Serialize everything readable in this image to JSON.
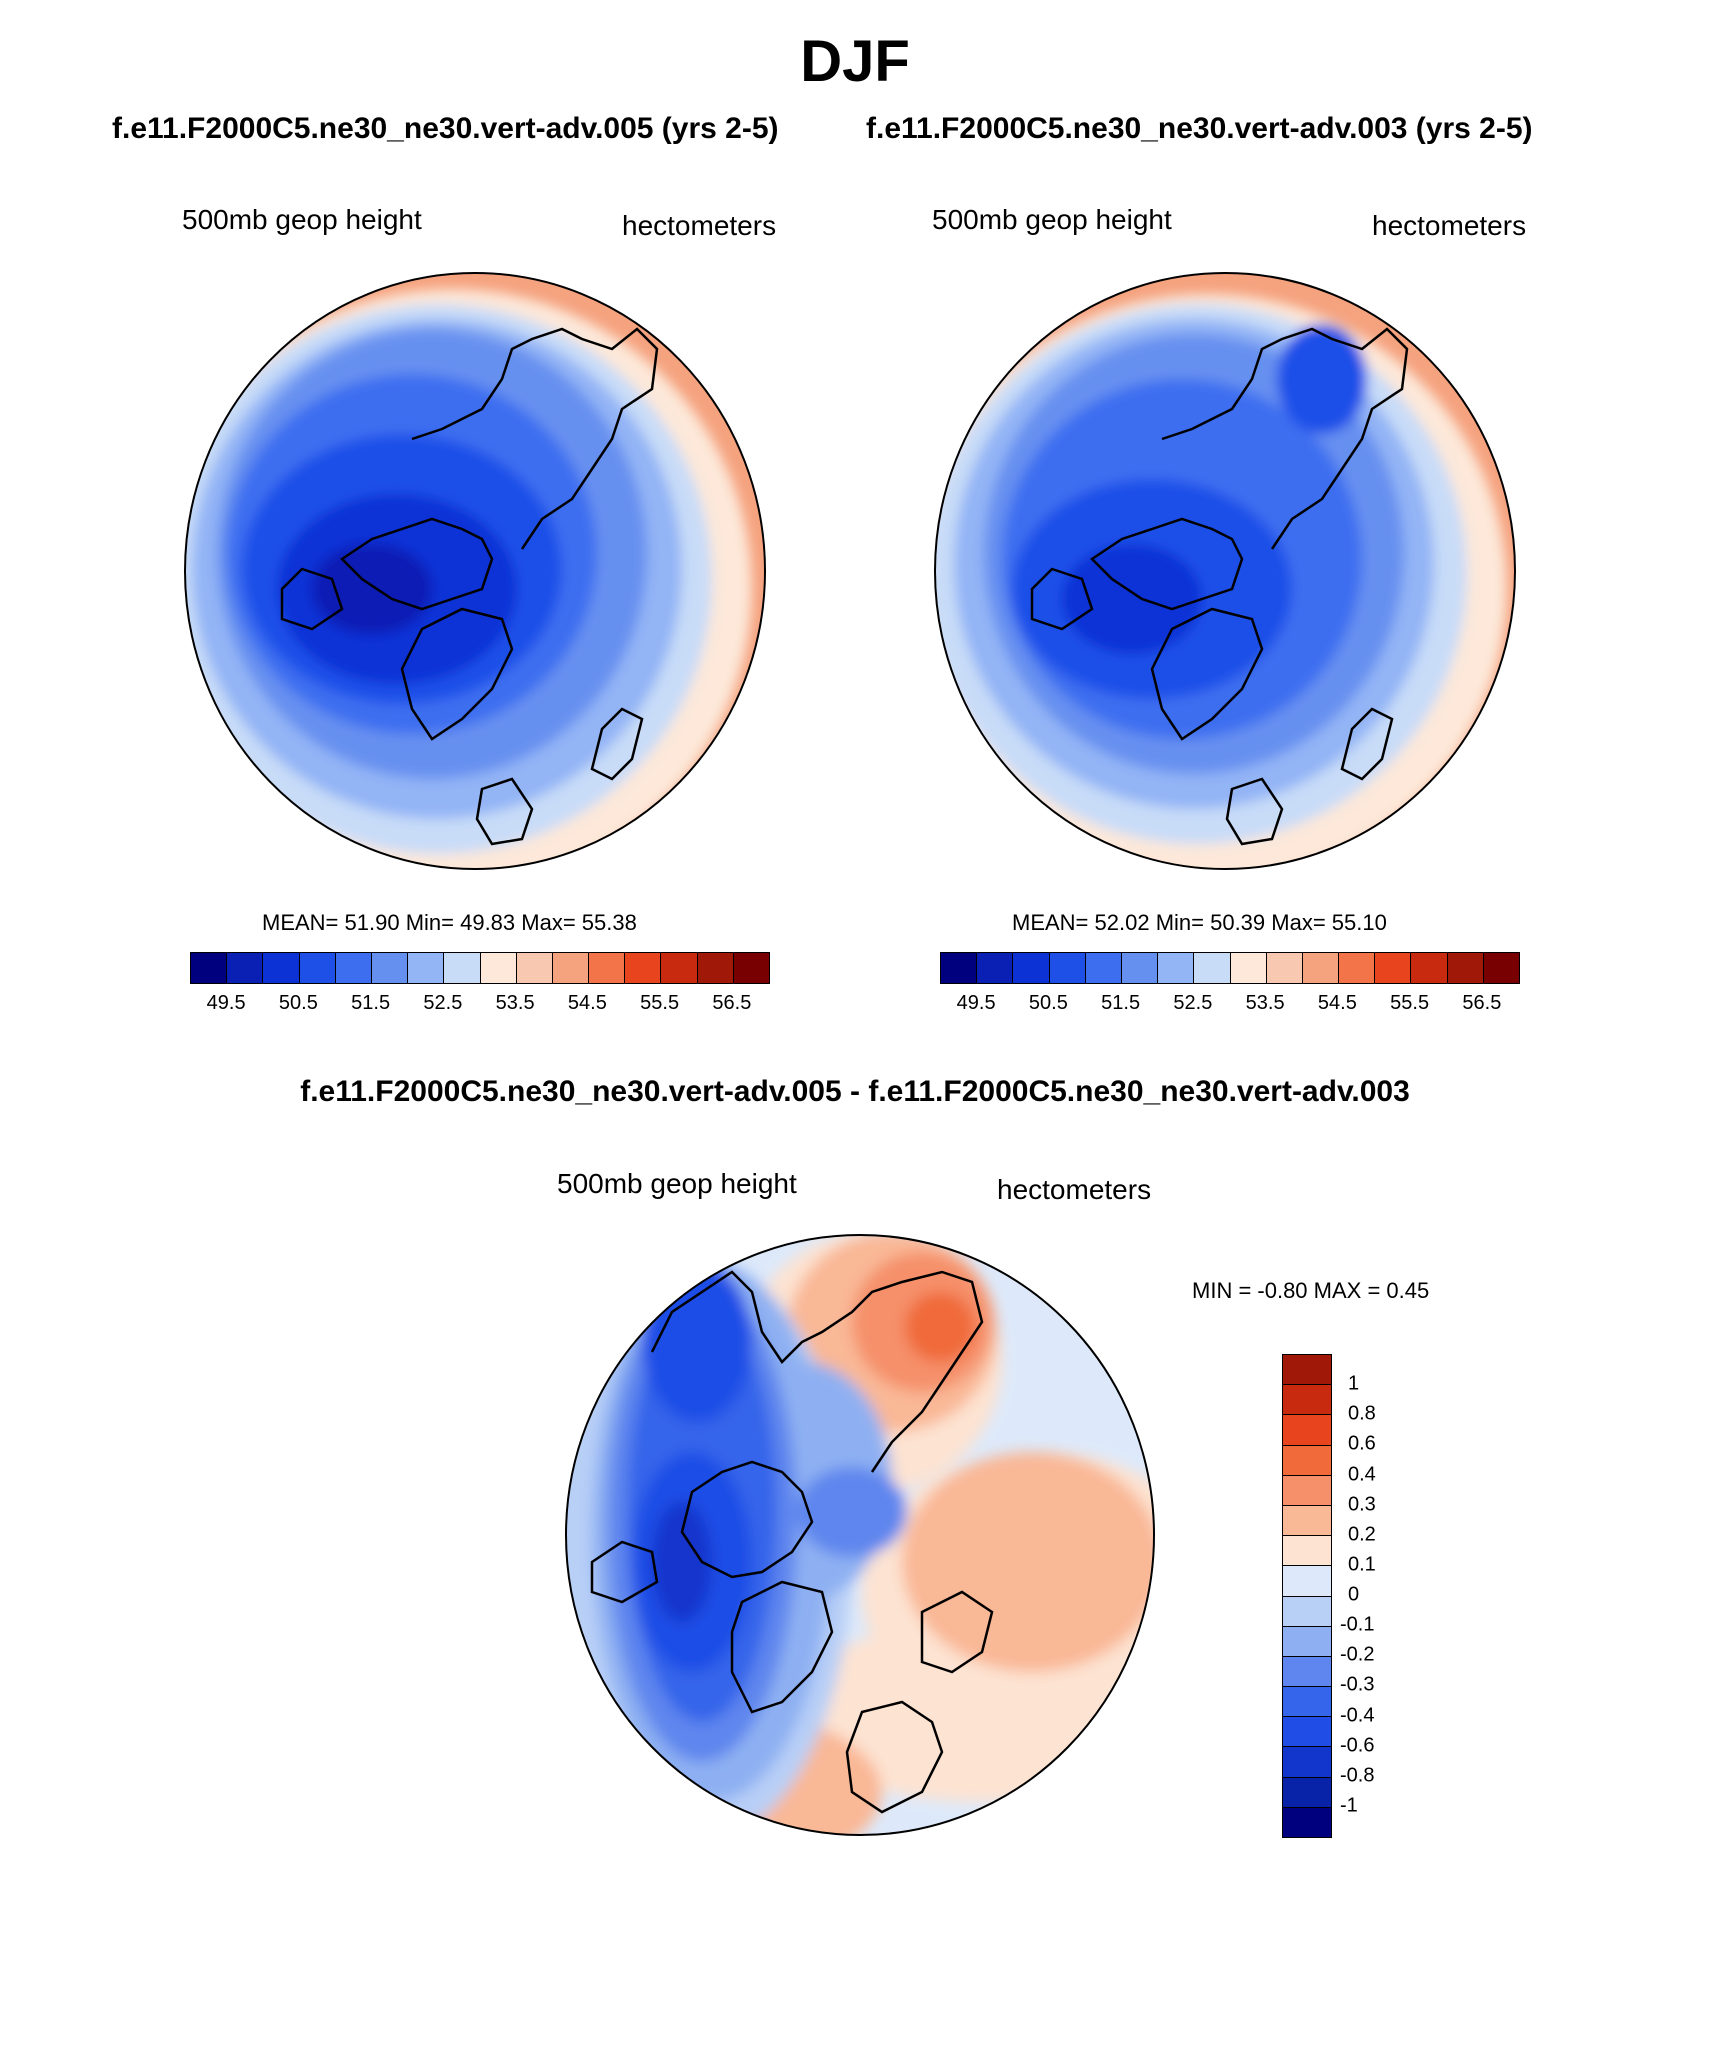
{
  "title": "DJF",
  "subtitle_left": "f.e11.F2000C5.ne30_ne30.vert-adv.005 (yrs 2-5)",
  "subtitle_right": "f.e11.F2000C5.ne30_ne30.vert-adv.003 (yrs 2-5)",
  "diff_title": "f.e11.F2000C5.ne30_ne30.vert-adv.005 - f.e11.F2000C5.ne30_ne30.vert-adv.003",
  "panels": [
    {
      "variable": "500mb geop height",
      "units": "hectometers",
      "stats": "MEAN=  51.90  Min=  49.83  Max=  55.38"
    },
    {
      "variable": "500mb geop height",
      "units": "hectometers",
      "stats": "MEAN=  52.02  Min=  50.39  Max=  55.10"
    },
    {
      "variable": "500mb geop height",
      "units": "hectometers",
      "stats": "MIN =  -0.80 MAX =   0.45"
    }
  ],
  "colorbar_abs": {
    "colors": [
      "#00007f",
      "#0a1fb4",
      "#0c32d6",
      "#1e50e8",
      "#3d6ef0",
      "#6690f0",
      "#93b4f5",
      "#c8dcf8",
      "#fde8d9",
      "#f9c8b0",
      "#f5a27e",
      "#f27448",
      "#e8441e",
      "#c82a10",
      "#a01808",
      "#780000"
    ],
    "tick_labels": [
      "49.5",
      "50.5",
      "51.5",
      "52.5",
      "53.5",
      "54.5",
      "55.5",
      "56.5"
    ]
  },
  "colorbar_diff": {
    "colors": [
      "#a01808",
      "#c82a10",
      "#e8441e",
      "#f06a3a",
      "#f5906a",
      "#f9b896",
      "#fde3d2",
      "#dde9fa",
      "#b8cff6",
      "#8eb0f2",
      "#5f86ee",
      "#3565ea",
      "#1f4de6",
      "#1236cc",
      "#0822a8",
      "#00007f"
    ],
    "tick_labels": [
      "1",
      "0.8",
      "0.6",
      "0.4",
      "0.3",
      "0.2",
      "0.1",
      "0",
      "-0.1",
      "-0.2",
      "-0.3",
      "-0.4",
      "-0.6",
      "-0.8",
      "-1"
    ]
  }
}
